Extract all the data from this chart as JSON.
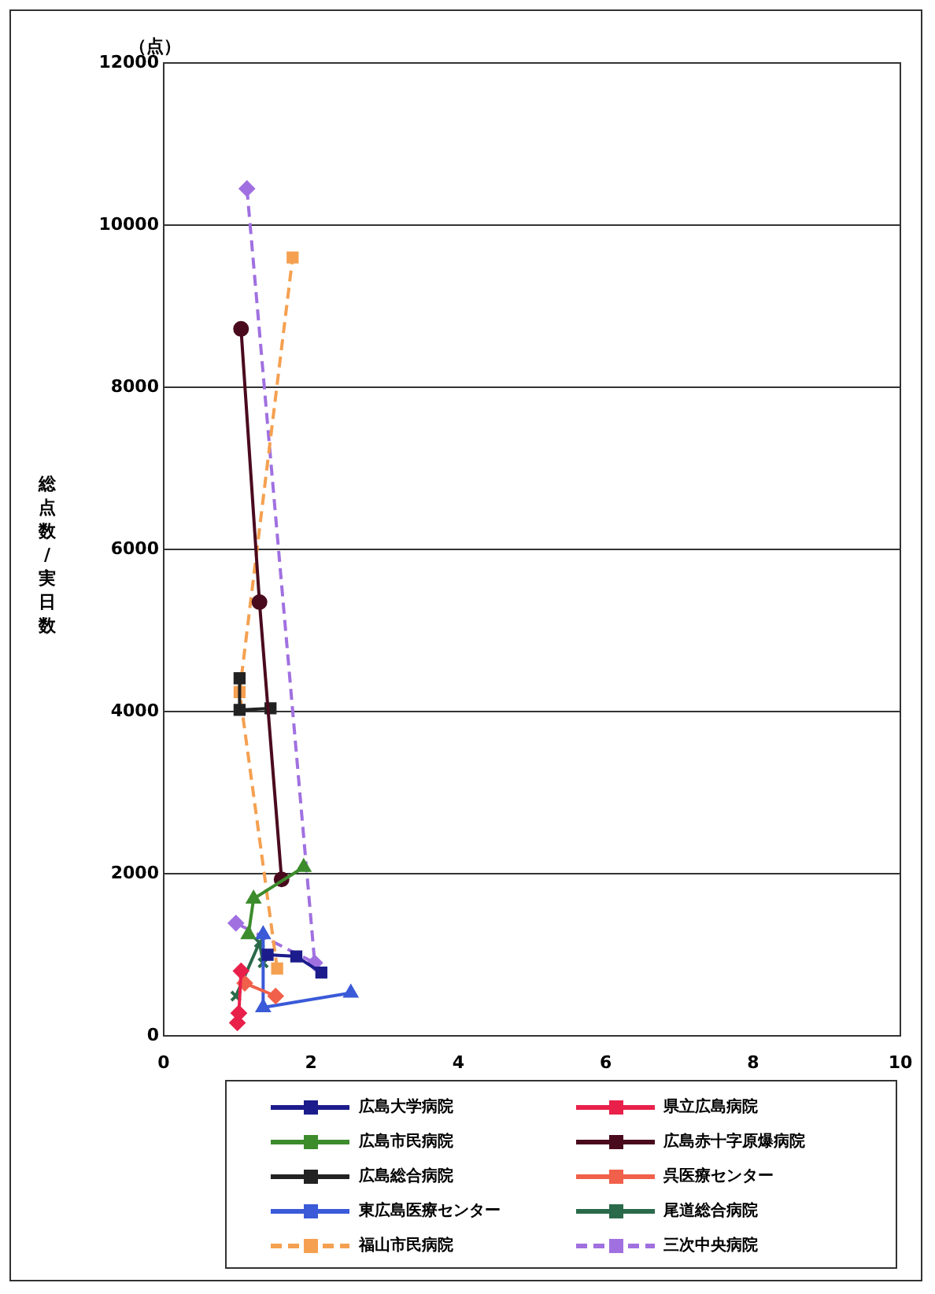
{
  "chart_data": {
    "type": "line",
    "ylabel": "総点数/実日数",
    "annotations": [
      "（点）"
    ],
    "xlim": [
      0,
      10
    ],
    "xticks": [
      0,
      2,
      4,
      6,
      8,
      10
    ],
    "ylim": [
      0,
      12000
    ],
    "yticks": [
      0,
      2000,
      4000,
      6000,
      8000,
      10000,
      12000
    ],
    "grid": "y",
    "legend": "bottom",
    "line_style": "solid",
    "series": [
      {
        "name": "広島大学病院",
        "color": "#1c1c8c",
        "marker": "square",
        "x": [
          1.41,
          1.8,
          2.14
        ],
        "values": [
          1000,
          980,
          780
        ]
      },
      {
        "name": "県立広島病院",
        "color": "#e8204a",
        "marker": "diamond",
        "x": [
          1.0,
          1.02,
          1.05
        ],
        "values": [
          160,
          280,
          800
        ]
      },
      {
        "name": "広島市民病院",
        "color": "#3c8c2c",
        "marker": "triangle",
        "x": [
          1.9,
          1.22,
          1.15
        ],
        "values": [
          2080,
          1690,
          1250
        ]
      },
      {
        "name": "広島赤十字原爆病院",
        "color": "#4a0a1e",
        "marker": "circle",
        "x": [
          1.05,
          1.3,
          1.6
        ],
        "values": [
          8720,
          5350,
          1930
        ]
      },
      {
        "name": "広島総合病院",
        "color": "#222222",
        "marker": "square",
        "x": [
          1.03,
          1.03,
          1.45
        ],
        "values": [
          4410,
          4020,
          4040
        ]
      },
      {
        "name": "呉医療センター",
        "color": "#f0604a",
        "marker": "diamond",
        "x": [
          1.1,
          1.52
        ],
        "values": [
          650,
          490
        ]
      },
      {
        "name": "東広島医療センター",
        "color": "#3a5ad8",
        "marker": "triangle",
        "x": [
          1.35,
          1.35,
          2.54
        ],
        "values": [
          1250,
          350,
          530
        ]
      },
      {
        "name": "尾道総合病院",
        "color": "#2a6a4a",
        "marker": "cross",
        "x": [
          0.98,
          1.3,
          1.35
        ],
        "values": [
          490,
          1150,
          900
        ]
      },
      {
        "name": "福山市民病院",
        "color": "#f5a050",
        "marker": "square",
        "line_style": "dashed",
        "x": [
          1.54,
          1.03,
          1.75
        ],
        "values": [
          830,
          4240,
          9600
        ]
      },
      {
        "name": "三次中央病院",
        "color": "#a070e0",
        "marker": "diamond",
        "line_style": "dashed",
        "x": [
          1.13,
          2.05,
          0.98
        ],
        "values": [
          10450,
          900,
          1390
        ]
      }
    ]
  }
}
